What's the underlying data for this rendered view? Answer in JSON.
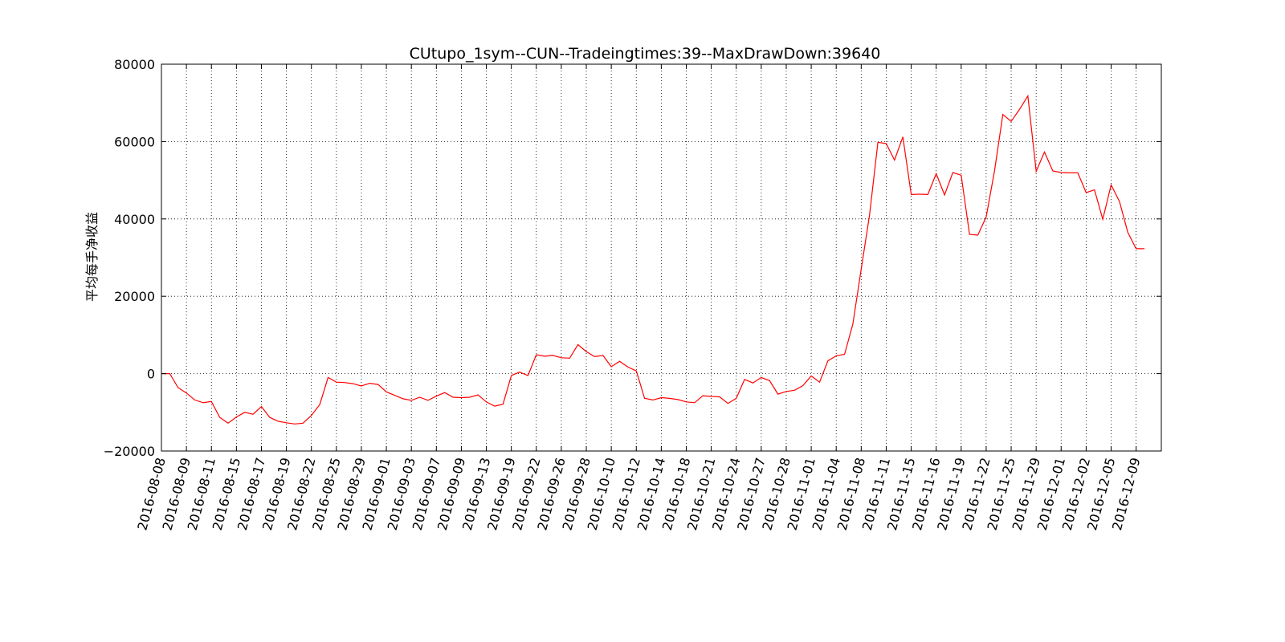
{
  "chart_data": {
    "type": "line",
    "title": "CUtupo_1sym--CUN--Tradeingtimes:39--MaxDrawDown:39640",
    "xlabel": "",
    "ylabel": "平均每手净收益",
    "ylim": [
      -20000,
      80000
    ],
    "yticks": [
      "−20000",
      "0",
      "20000",
      "40000",
      "60000",
      "80000"
    ],
    "xticks": [
      "2016-08-08",
      "2016-08-09",
      "2016-08-11",
      "2016-08-15",
      "2016-08-17",
      "2016-08-19",
      "2016-08-22",
      "2016-08-25",
      "2016-08-29",
      "2016-09-01",
      "2016-09-03",
      "2016-09-07",
      "2016-09-09",
      "2016-09-13",
      "2016-09-19",
      "2016-09-22",
      "2016-09-26",
      "2016-09-28",
      "2016-10-10",
      "2016-10-12",
      "2016-10-14",
      "2016-10-18",
      "2016-10-21",
      "2016-10-24",
      "2016-10-27",
      "2016-10-28",
      "2016-11-01",
      "2016-11-04",
      "2016-11-08",
      "2016-11-11",
      "2016-11-15",
      "2016-11-16",
      "2016-11-19",
      "2016-11-22",
      "2016-11-25",
      "2016-11-29",
      "2016-12-01",
      "2016-12-02",
      "2016-12-05",
      "2016-12-09"
    ],
    "grid": true,
    "series": [
      {
        "color": "#ff0000",
        "values": [
          0,
          0,
          -3600,
          -5000,
          -6800,
          -7500,
          -7200,
          -11300,
          -12800,
          -11200,
          -10000,
          -10500,
          -8500,
          -11300,
          -12300,
          -12700,
          -13000,
          -12800,
          -10800,
          -8000,
          -1000,
          -2200,
          -2300,
          -2600,
          -3200,
          -2500,
          -2800,
          -4700,
          -5600,
          -6500,
          -6900,
          -6100,
          -6900,
          -5800,
          -4900,
          -6100,
          -6200,
          -6100,
          -5500,
          -7300,
          -8400,
          -7900,
          -500,
          400,
          -500,
          4900,
          4500,
          4700,
          4100,
          4000,
          7500,
          5700,
          4400,
          4700,
          1800,
          3200,
          1700,
          700,
          -6400,
          -6800,
          -6200,
          -6400,
          -6700,
          -7300,
          -7500,
          -5700,
          -5900,
          -6000,
          -7700,
          -6400,
          -1500,
          -2400,
          -1000,
          -1800,
          -5300,
          -4600,
          -4300,
          -3100,
          -600,
          -2200,
          3300,
          4600,
          5000,
          12800,
          27000,
          41000,
          59800,
          59500,
          55200,
          61200,
          46300,
          46400,
          46300,
          51700,
          46200,
          52000,
          51300,
          36000,
          35800,
          40500,
          52400,
          67000,
          65200,
          68300,
          71800,
          52300,
          57300,
          52400,
          52000,
          51900,
          51900,
          46800,
          47500,
          39900,
          48800,
          44500,
          36500,
          32300,
          32300
        ]
      }
    ]
  }
}
